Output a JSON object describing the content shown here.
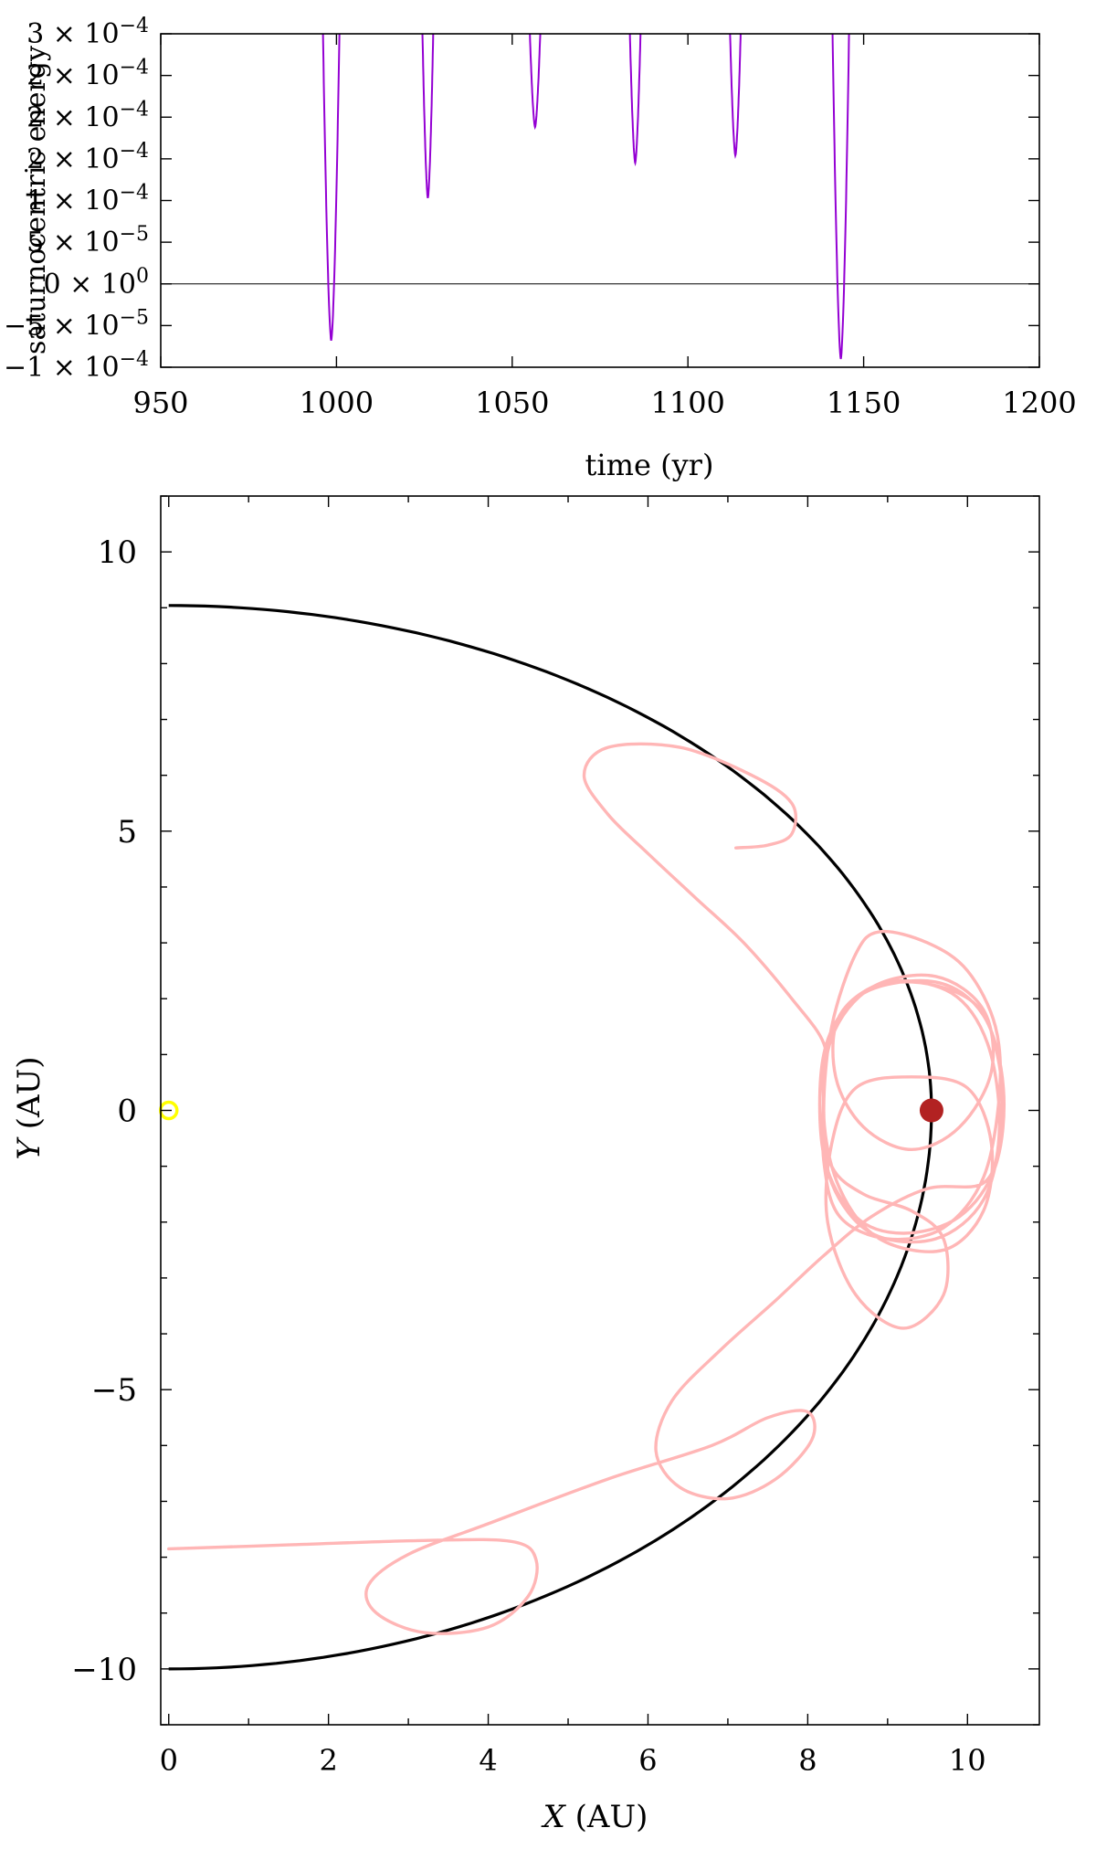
{
  "chart_data": [
    {
      "type": "line",
      "ylabel": "saturnocentric energy",
      "xlabel": "time (yr)",
      "xlim": [
        950,
        1200
      ],
      "ylim": [
        -0.0001,
        0.0003
      ],
      "x_ticks": [
        950,
        1000,
        1050,
        1100,
        1150,
        1200
      ],
      "y_ticks": [
        {
          "value": -0.0001,
          "mantissa": "−1",
          "exponent": "−4"
        },
        {
          "value": -5e-05,
          "mantissa": "−5",
          "exponent": "−5"
        },
        {
          "value": 0,
          "mantissa": "0",
          "exponent": "0"
        },
        {
          "value": 5e-05,
          "mantissa": "5",
          "exponent": "−5"
        },
        {
          "value": 0.0001,
          "mantissa": "1",
          "exponent": "−4"
        },
        {
          "value": 0.00015,
          "mantissa": "2",
          "exponent": "−4"
        },
        {
          "value": 0.0002,
          "mantissa": "2",
          "exponent": "−4"
        },
        {
          "value": 0.00025,
          "mantissa": "2",
          "exponent": "−4"
        },
        {
          "value": 0.0003,
          "mantissa": "3",
          "exponent": "−4"
        }
      ],
      "reference_line_y": 0,
      "series": [
        {
          "color": "#9400d3",
          "dips": [
            {
              "x": 998.5,
              "min": -6.8e-05,
              "width": 2.4
            },
            {
              "x": 1026,
              "min": 0.000103,
              "width": 1.6
            },
            {
              "x": 1056.5,
              "min": 0.000188,
              "width": 1.6
            },
            {
              "x": 1085,
              "min": 0.000145,
              "width": 1.6
            },
            {
              "x": 1113.5,
              "min": 0.000154,
              "width": 1.6
            },
            {
              "x": 1143.5,
              "min": -9e-05,
              "width": 2.4
            }
          ]
        }
      ]
    },
    {
      "type": "line",
      "xlabel_italic": "X",
      "xlabel_unit": " (AU)",
      "ylabel_italic": "Y",
      "ylabel_unit": " (AU)",
      "xlim": [
        -0.1,
        10.9
      ],
      "ylim": [
        -11,
        11
      ],
      "x_ticks": [
        0,
        2,
        4,
        6,
        8,
        10
      ],
      "y_ticks": [
        {
          "value": -10,
          "label": "−10"
        },
        {
          "value": -5,
          "label": "−5"
        },
        {
          "value": 0,
          "label": "0"
        },
        {
          "value": 5,
          "label": "5"
        },
        {
          "value": 10,
          "label": "10"
        }
      ],
      "saturn_orbit": {
        "color": "#000000",
        "a": 9.55,
        "ry_top": 9.04,
        "ry_bottom": 10.0
      },
      "sun": {
        "x": 0,
        "y": 0,
        "color": "#ffff00"
      },
      "saturn": {
        "x": 9.55,
        "y": 0,
        "color": "#b22222"
      },
      "trajectory": {
        "color": "#ffb6b6",
        "points": [
          [
            0,
            -7.85
          ],
          [
            1.5,
            -7.78
          ],
          [
            3.2,
            -7.7
          ],
          [
            4.3,
            -7.72
          ],
          [
            4.6,
            -8.05
          ],
          [
            4.5,
            -8.7
          ],
          [
            4,
            -9.25
          ],
          [
            3.2,
            -9.35
          ],
          [
            2.6,
            -9.0
          ],
          [
            2.5,
            -8.5
          ],
          [
            3,
            -7.95
          ],
          [
            4,
            -7.4
          ],
          [
            5.5,
            -6.6
          ],
          [
            6.8,
            -6.0
          ],
          [
            7.5,
            -5.5
          ],
          [
            8,
            -5.4
          ],
          [
            8.05,
            -5.9
          ],
          [
            7.6,
            -6.6
          ],
          [
            7,
            -6.95
          ],
          [
            6.4,
            -6.75
          ],
          [
            6.1,
            -6.1
          ],
          [
            6.3,
            -5.2
          ],
          [
            6.9,
            -4.3
          ],
          [
            7.6,
            -3.4
          ],
          [
            8.2,
            -2.6
          ],
          [
            8.8,
            -1.9
          ],
          [
            9.5,
            -1.4
          ],
          [
            10.2,
            -1.3
          ],
          [
            10.4,
            -0.5
          ],
          [
            10.4,
            0.8
          ],
          [
            10.1,
            1.9
          ],
          [
            9.3,
            2.3
          ],
          [
            8.6,
            2.0
          ],
          [
            8.2,
            1.0
          ],
          [
            8.2,
            -0.8
          ],
          [
            8.6,
            -1.9
          ],
          [
            9.2,
            -2.2
          ],
          [
            9.9,
            -1.9
          ],
          [
            10.35,
            -1.0
          ],
          [
            10.45,
            0.4
          ],
          [
            10.2,
            1.7
          ],
          [
            9.6,
            2.3
          ],
          [
            8.7,
            2.1
          ],
          [
            8.25,
            1.2
          ],
          [
            8.2,
            0
          ],
          [
            8.3,
            -1.3
          ],
          [
            8.8,
            -2.2
          ],
          [
            9.6,
            -2.3
          ],
          [
            10.2,
            -1.6
          ],
          [
            10.4,
            -0.3
          ],
          [
            10.25,
            1.2
          ],
          [
            9.8,
            2.1
          ],
          [
            9.0,
            2.3
          ],
          [
            8.4,
            1.7
          ],
          [
            8.35,
            0.6
          ],
          [
            8.7,
            -0.3
          ],
          [
            9.3,
            -0.7
          ],
          [
            9.9,
            -0.3
          ],
          [
            10.3,
            0.7
          ],
          [
            10.2,
            1.8
          ],
          [
            9.6,
            2.4
          ],
          [
            8.8,
            2.2
          ],
          [
            8.3,
            1.3
          ],
          [
            8.2,
            -0.1
          ],
          [
            8.4,
            -1.4
          ],
          [
            8.9,
            -2.3
          ],
          [
            9.7,
            -2.5
          ],
          [
            10.2,
            -1.8
          ],
          [
            10.3,
            -0.6
          ],
          [
            10.0,
            0.4
          ],
          [
            9.3,
            0.6
          ],
          [
            8.6,
            0.4
          ],
          [
            8.3,
            -0.6
          ],
          [
            8.25,
            -2.0
          ],
          [
            8.6,
            -3.3
          ],
          [
            9.2,
            -3.9
          ],
          [
            9.7,
            -3.3
          ],
          [
            9.7,
            -2.3
          ],
          [
            9.3,
            -1.8
          ],
          [
            8.7,
            -1.5
          ],
          [
            8.3,
            -1.0
          ],
          [
            8.2,
            0
          ],
          [
            8.3,
            1.5
          ],
          [
            8.6,
            2.8
          ],
          [
            8.9,
            3.2
          ],
          [
            9.5,
            3.0
          ],
          [
            10.0,
            2.5
          ],
          [
            10.35,
            1.5
          ],
          [
            10.4,
            0.3
          ],
          [
            10.2,
            -1.2
          ],
          [
            9.7,
            -2.1
          ],
          [
            9.0,
            -2.3
          ],
          [
            8.4,
            -1.9
          ],
          [
            8.2,
            -0.9
          ],
          [
            8.2,
            0.5
          ],
          [
            8.2,
            1.2
          ],
          [
            7.8,
            2.0
          ],
          [
            7.2,
            3.0
          ],
          [
            6.6,
            3.8
          ],
          [
            6.0,
            4.6
          ],
          [
            5.5,
            5.3
          ],
          [
            5.2,
            6.0
          ],
          [
            5.5,
            6.5
          ],
          [
            6.4,
            6.5
          ],
          [
            7.3,
            6.0
          ],
          [
            7.8,
            5.5
          ],
          [
            7.8,
            4.95
          ],
          [
            7.5,
            4.75
          ],
          [
            7.1,
            4.7
          ]
        ]
      }
    }
  ]
}
